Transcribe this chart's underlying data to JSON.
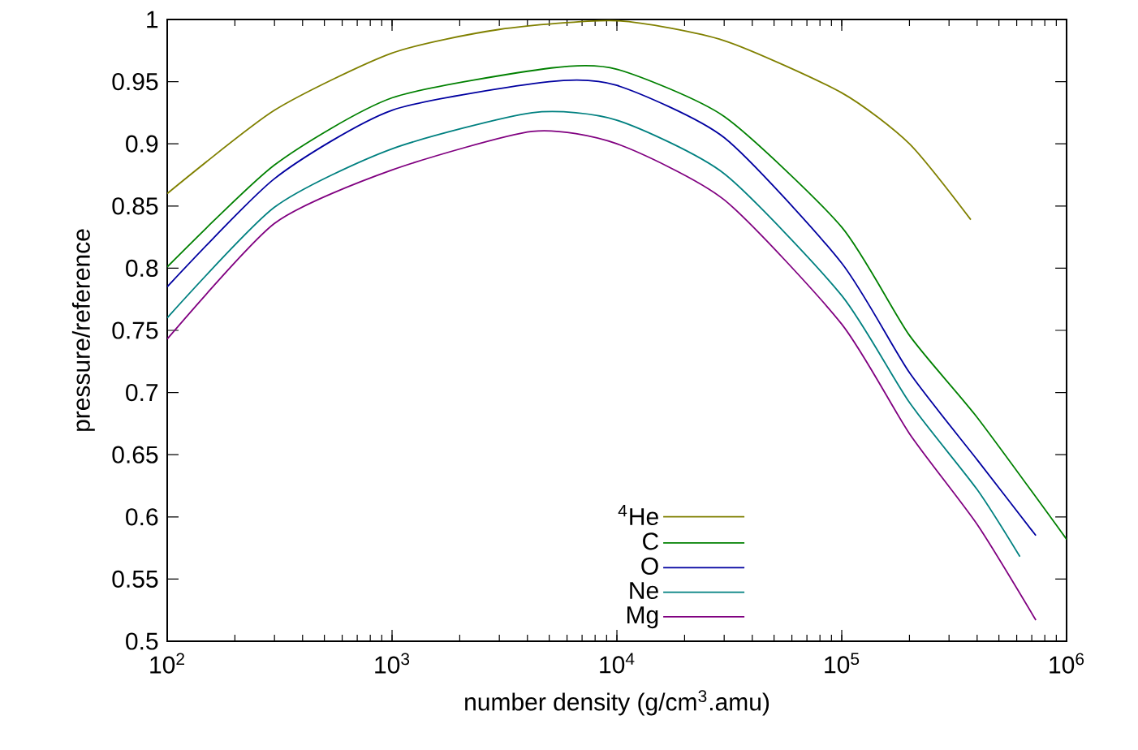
{
  "chart_data": {
    "type": "line",
    "xlabel": "number density (g/cm$^{3}$.amu)",
    "ylabel": "pressure/reference",
    "log": "x",
    "legend": "bottom",
    "grid": false,
    "marker": "none",
    "line_style": "solid",
    "xlim": [
      100,
      1000000
    ],
    "xticks": [
      {
        "value": 100,
        "label": "10$^{2}$"
      },
      {
        "value": 1000,
        "label": "10$^{3}$"
      },
      {
        "value": 10000,
        "label": "10$^{4}$"
      },
      {
        "value": 100000,
        "label": "10$^{5}$"
      },
      {
        "value": 1000000,
        "label": "10$^{6}$"
      }
    ],
    "ylim": [
      0.5,
      1
    ],
    "yticks": [
      0.5,
      0.55,
      0.6,
      0.65,
      0.7,
      0.75,
      0.8,
      0.85,
      0.9,
      0.95,
      1
    ],
    "series": [
      {
        "name": "$^{4}$He",
        "color": "#808000",
        "x": [
          100,
          300,
          1000,
          3000,
          10000,
          30000,
          100000,
          200000,
          375000
        ],
        "values": [
          0.86,
          0.927,
          0.973,
          0.992,
          0.999,
          0.983,
          0.941,
          0.9,
          0.839
        ]
      },
      {
        "name": "C",
        "color": "#008000",
        "x": [
          100,
          300,
          1000,
          5100,
          10000,
          30000,
          100000,
          200000,
          400000,
          1000000
        ],
        "values": [
          0.801,
          0.883,
          0.937,
          0.961,
          0.96,
          0.922,
          0.833,
          0.746,
          0.68,
          0.582
        ]
      },
      {
        "name": "O",
        "color": "#0000a0",
        "x": [
          100,
          300,
          1000,
          5000,
          10000,
          30000,
          100000,
          200000,
          400000,
          730000
        ],
        "values": [
          0.785,
          0.872,
          0.927,
          0.95,
          0.947,
          0.905,
          0.804,
          0.716,
          0.646,
          0.585
        ]
      },
      {
        "name": "Ne",
        "color": "#008080",
        "x": [
          100,
          300,
          1000,
          4200,
          10000,
          30000,
          100000,
          200000,
          400000,
          620000
        ],
        "values": [
          0.76,
          0.849,
          0.896,
          0.925,
          0.919,
          0.876,
          0.778,
          0.692,
          0.622,
          0.568
        ]
      },
      {
        "name": "Mg",
        "color": "#800080",
        "x": [
          100,
          300,
          1000,
          4200,
          10000,
          30000,
          100000,
          200000,
          400000,
          730000
        ],
        "values": [
          0.743,
          0.836,
          0.879,
          0.91,
          0.9,
          0.855,
          0.755,
          0.667,
          0.594,
          0.517
        ]
      }
    ]
  }
}
